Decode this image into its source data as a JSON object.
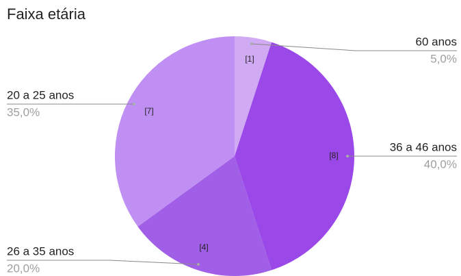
{
  "chart_data": {
    "type": "pie",
    "title": "Faixa etária",
    "categories": [
      "60 anos",
      "36 a 46 anos",
      "26 a 35 anos",
      "20 a 25 anos"
    ],
    "values": [
      5,
      40,
      20,
      35
    ],
    "value_labels": [
      "5,0%",
      "40,0%",
      "20,0%",
      "35,0%"
    ],
    "count_labels": [
      "[1]",
      "[8]",
      "[4]",
      "[7]"
    ],
    "colors": [
      "#d0aaf2",
      "#9a48e8",
      "#a15ee6",
      "#c08ff3"
    ]
  }
}
